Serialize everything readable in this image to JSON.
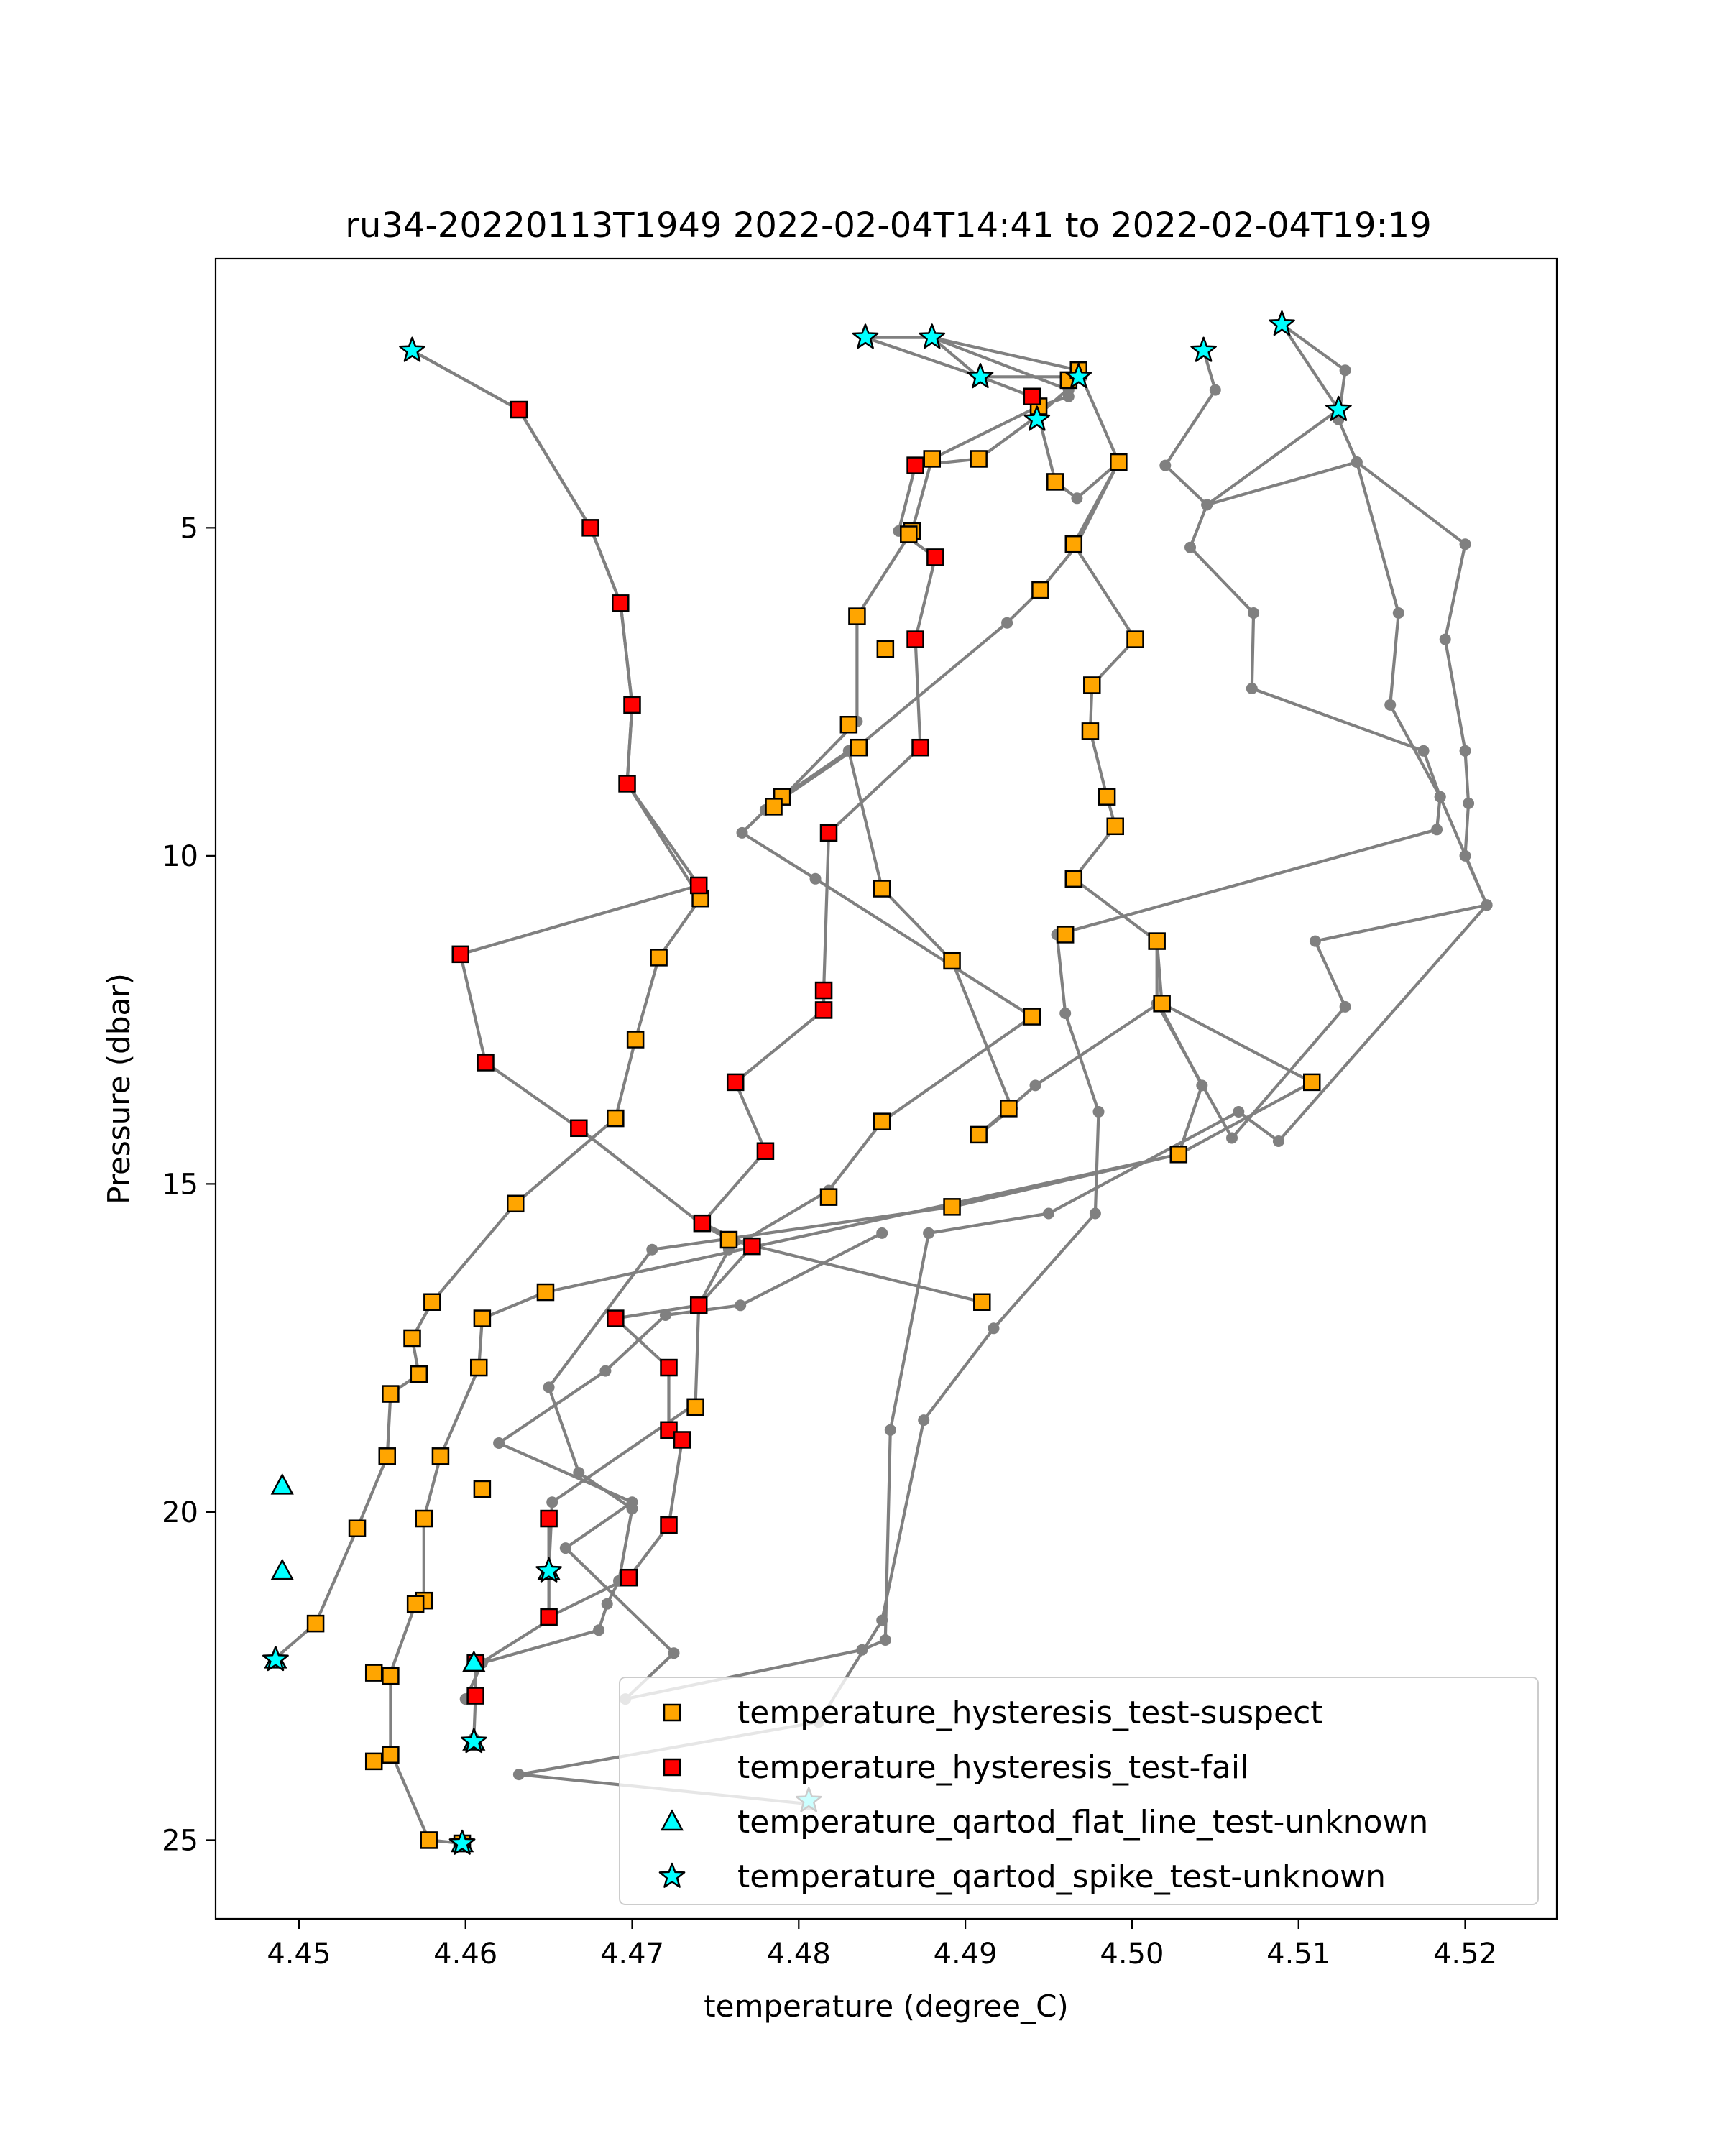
{
  "chart_data": {
    "type": "scatter",
    "title": "ru34-20220113T1949 2022-02-04T14:41 to 2022-02-04T19:19",
    "xlabel": "temperature (degree_C)",
    "ylabel": "Pressure (dbar)",
    "xlim": [
      4.445,
      4.5255
    ],
    "ylim": [
      26.2,
      0.9
    ],
    "y_inverted": true,
    "grid": false,
    "legend_position": "lower right",
    "xticks": [
      "4.45",
      "4.46",
      "4.47",
      "4.48",
      "4.49",
      "4.50",
      "4.51",
      "4.52"
    ],
    "yticks": [
      "5",
      "10",
      "15",
      "20",
      "25"
    ],
    "line_color": "#808080",
    "profiles": [
      [
        [
          4.4568,
          2.3
        ],
        [
          4.4632,
          3.2
        ],
        [
          4.4675,
          5.0
        ],
        [
          4.4693,
          6.15
        ],
        [
          4.47,
          7.7
        ],
        [
          4.4697,
          8.9
        ],
        [
          4.474,
          10.45
        ],
        [
          4.4597,
          11.5
        ],
        [
          4.4612,
          13.15
        ],
        [
          4.4668,
          14.15
        ],
        [
          4.4741,
          15.6
        ],
        [
          4.4758,
          15.85
        ],
        [
          4.491,
          16.8
        ]
      ],
      [
        [
          4.4568,
          2.3
        ],
        [
          4.4632,
          3.2
        ],
        [
          4.4675,
          5.0
        ],
        [
          4.4693,
          6.15
        ],
        [
          4.47,
          7.7
        ],
        [
          4.4697,
          8.9
        ],
        [
          4.4741,
          10.65
        ],
        [
          4.4716,
          11.55
        ],
        [
          4.4702,
          12.8
        ],
        [
          4.469,
          14.0
        ],
        [
          4.463,
          15.3
        ],
        [
          4.458,
          16.8
        ],
        [
          4.4568,
          17.35
        ],
        [
          4.4572,
          17.9
        ],
        [
          4.4555,
          18.2
        ],
        [
          4.4553,
          19.15
        ],
        [
          4.4535,
          20.25
        ],
        [
          4.451,
          21.7
        ],
        [
          4.4485,
          22.25
        ]
      ],
      [
        [
          4.484,
          2.1
        ],
        [
          4.488,
          2.1
        ],
        [
          4.4968,
          2.6
        ],
        [
          4.4992,
          4.0
        ],
        [
          4.4965,
          5.25
        ],
        [
          4.5002,
          6.7
        ],
        [
          4.4976,
          7.4
        ],
        [
          4.4975,
          8.1
        ],
        [
          4.4985,
          9.1
        ],
        [
          4.499,
          9.55
        ],
        [
          4.4965,
          10.35
        ],
        [
          4.5015,
          11.3
        ],
        [
          4.5018,
          12.25
        ],
        [
          4.5108,
          13.45
        ],
        [
          4.5028,
          14.55
        ],
        [
          4.4648,
          16.65
        ],
        [
          4.461,
          17.05
        ],
        [
          4.4608,
          17.8
        ],
        [
          4.4585,
          19.15
        ],
        [
          4.4575,
          20.1
        ],
        [
          4.4575,
          21.35
        ],
        [
          4.457,
          21.4
        ],
        [
          4.4555,
          22.45
        ],
        [
          4.4555,
          23.65
        ],
        [
          4.4578,
          25.0
        ],
        [
          4.4598,
          25.05
        ]
      ],
      [
        [
          4.484,
          2.1
        ],
        [
          4.4909,
          2.7
        ],
        [
          4.494,
          3.0
        ],
        [
          4.4944,
          3.3
        ],
        [
          4.4954,
          4.3
        ],
        [
          4.4967,
          4.55
        ],
        [
          4.4992,
          4.0
        ],
        [
          4.4966,
          5.3
        ],
        [
          4.4945,
          5.95
        ],
        [
          4.4925,
          6.45
        ],
        [
          4.4835,
          8.35
        ],
        [
          4.478,
          9.3
        ],
        [
          4.4766,
          9.65
        ],
        [
          4.481,
          10.35
        ],
        [
          4.494,
          12.45
        ],
        [
          4.485,
          14.05
        ],
        [
          4.4818,
          15.1
        ],
        [
          4.4758,
          16.0
        ],
        [
          4.474,
          16.85
        ],
        [
          4.4738,
          18.35
        ],
        [
          4.4652,
          19.85
        ],
        [
          4.465,
          20.9
        ],
        [
          4.465,
          21.65
        ],
        [
          4.4606,
          22.35
        ],
        [
          4.4606,
          22.8
        ],
        [
          4.4605,
          23.45
        ]
      ],
      [
        [
          4.488,
          2.1
        ],
        [
          4.4962,
          2.9
        ],
        [
          4.4962,
          3.0
        ],
        [
          4.4944,
          3.15
        ],
        [
          4.488,
          3.95
        ],
        [
          4.4868,
          5.05
        ],
        [
          4.4835,
          6.35
        ],
        [
          4.4835,
          7.95
        ],
        [
          4.4785,
          9.25
        ],
        [
          4.479,
          9.1
        ],
        [
          4.483,
          8.4
        ],
        [
          4.485,
          10.5
        ],
        [
          4.4892,
          11.6
        ],
        [
          4.4928,
          13.85
        ],
        [
          4.4908,
          14.25
        ],
        [
          4.4942,
          13.5
        ],
        [
          4.5016,
          12.25
        ],
        [
          4.5042,
          13.5
        ],
        [
          4.5028,
          14.55
        ],
        [
          4.4892,
          15.35
        ],
        [
          4.4712,
          16.0
        ],
        [
          4.465,
          18.1
        ],
        [
          4.4668,
          19.4
        ],
        [
          4.47,
          19.95
        ],
        [
          4.4692,
          21.05
        ],
        [
          4.4685,
          21.4
        ],
        [
          4.468,
          21.8
        ],
        [
          4.461,
          22.3
        ],
        [
          4.46,
          22.85
        ]
      ],
      [
        [
          4.488,
          2.1
        ],
        [
          4.4908,
          2.7
        ],
        [
          4.497,
          2.7
        ],
        [
          4.4943,
          3.3
        ],
        [
          4.4908,
          3.95
        ],
        [
          4.487,
          4.05
        ],
        [
          4.486,
          5.05
        ],
        [
          4.4882,
          5.45
        ],
        [
          4.487,
          6.7
        ],
        [
          4.4873,
          8.35
        ],
        [
          4.4818,
          9.65
        ],
        [
          4.4815,
          12.05
        ],
        [
          4.4815,
          12.35
        ],
        [
          4.4762,
          13.45
        ],
        [
          4.478,
          14.5
        ],
        [
          4.4742,
          15.6
        ],
        [
          4.4772,
          15.95
        ],
        [
          4.474,
          16.85
        ],
        [
          4.469,
          17.05
        ],
        [
          4.4722,
          17.8
        ],
        [
          4.4722,
          18.75
        ],
        [
          4.473,
          18.9
        ],
        [
          4.4722,
          20.2
        ],
        [
          4.4698,
          21.0
        ],
        [
          4.465,
          21.6
        ],
        [
          4.465,
          20.1
        ]
      ],
      [
        [
          4.509,
          1.9
        ],
        [
          4.5128,
          2.6
        ],
        [
          4.5124,
          3.35
        ],
        [
          4.5135,
          4.0
        ],
        [
          4.52,
          5.25
        ],
        [
          4.5188,
          6.7
        ],
        [
          4.52,
          8.4
        ],
        [
          4.5202,
          9.2
        ],
        [
          4.52,
          10.0
        ],
        [
          4.5213,
          10.75
        ],
        [
          4.511,
          11.3
        ],
        [
          4.5128,
          12.3
        ],
        [
          4.506,
          14.3
        ],
        [
          4.5015,
          12.25
        ],
        [
          4.5015,
          11.3
        ]
      ],
      [
        [
          4.5043,
          2.3
        ],
        [
          4.505,
          2.9
        ],
        [
          4.502,
          4.05
        ],
        [
          4.5045,
          4.65
        ],
        [
          4.5035,
          5.3
        ],
        [
          4.5073,
          6.3
        ],
        [
          4.5072,
          7.45
        ],
        [
          4.5175,
          8.4
        ],
        [
          4.5185,
          9.1
        ],
        [
          4.5183,
          9.6
        ],
        [
          4.4955,
          11.2
        ],
        [
          4.496,
          12.4
        ],
        [
          4.498,
          13.9
        ],
        [
          4.4978,
          15.45
        ],
        [
          4.4917,
          17.2
        ],
        [
          4.4875,
          18.6
        ],
        [
          4.485,
          21.65
        ],
        [
          4.4812,
          23.2
        ],
        [
          4.4632,
          24.0
        ],
        [
          4.4806,
          24.45
        ]
      ],
      [
        [
          4.509,
          1.9
        ],
        [
          4.5124,
          3.2
        ],
        [
          4.5045,
          4.65
        ],
        [
          4.5135,
          4.0
        ],
        [
          4.516,
          6.3
        ],
        [
          4.5155,
          7.7
        ],
        [
          4.5185,
          9.1
        ],
        [
          4.5213,
          10.75
        ],
        [
          4.5088,
          14.35
        ],
        [
          4.5064,
          13.9
        ],
        [
          4.495,
          15.45
        ],
        [
          4.4878,
          15.75
        ],
        [
          4.4855,
          18.75
        ],
        [
          4.4852,
          21.95
        ],
        [
          4.4838,
          22.1
        ],
        [
          4.4696,
          22.85
        ],
        [
          4.4725,
          22.15
        ],
        [
          4.466,
          20.55
        ],
        [
          4.47,
          19.85
        ],
        [
          4.462,
          18.95
        ],
        [
          4.4684,
          17.85
        ],
        [
          4.472,
          17.0
        ],
        [
          4.4765,
          16.85
        ],
        [
          4.485,
          15.75
        ]
      ]
    ],
    "series": [
      {
        "name": "temperature_hysteresis_test-suspect",
        "color": "#ffa500",
        "marker": "square",
        "points": [
          [
            4.4962,
            2.75
          ],
          [
            4.4968,
            2.6
          ],
          [
            4.4944,
            3.15
          ],
          [
            4.488,
            3.95
          ],
          [
            4.4908,
            3.95
          ],
          [
            4.4954,
            4.3
          ],
          [
            4.4992,
            4.0
          ],
          [
            4.4868,
            5.05
          ],
          [
            4.4866,
            5.1
          ],
          [
            4.4965,
            5.25
          ],
          [
            4.4945,
            5.95
          ],
          [
            4.5002,
            6.7
          ],
          [
            4.4835,
            6.35
          ],
          [
            4.4852,
            6.85
          ],
          [
            4.4976,
            7.4
          ],
          [
            4.483,
            8.0
          ],
          [
            4.4836,
            8.35
          ],
          [
            4.4975,
            8.1
          ],
          [
            4.4985,
            9.1
          ],
          [
            4.479,
            9.1
          ],
          [
            4.4785,
            9.25
          ],
          [
            4.499,
            9.55
          ],
          [
            4.4965,
            10.35
          ],
          [
            4.485,
            10.5
          ],
          [
            4.4741,
            10.65
          ],
          [
            4.5015,
            11.3
          ],
          [
            4.496,
            11.2
          ],
          [
            4.4892,
            11.6
          ],
          [
            4.4716,
            11.55
          ],
          [
            4.5018,
            12.25
          ],
          [
            4.494,
            12.45
          ],
          [
            4.4702,
            12.8
          ],
          [
            4.5108,
            13.45
          ],
          [
            4.4926,
            13.85
          ],
          [
            4.485,
            14.05
          ],
          [
            4.4908,
            14.25
          ],
          [
            4.469,
            14.0
          ],
          [
            4.5028,
            14.55
          ],
          [
            4.463,
            15.3
          ],
          [
            4.4818,
            15.2
          ],
          [
            4.4892,
            15.35
          ],
          [
            4.4758,
            15.85
          ],
          [
            4.491,
            16.8
          ],
          [
            4.4648,
            16.65
          ],
          [
            4.458,
            16.8
          ],
          [
            4.461,
            17.05
          ],
          [
            4.4568,
            17.35
          ],
          [
            4.4608,
            17.8
          ],
          [
            4.4572,
            17.9
          ],
          [
            4.4555,
            18.2
          ],
          [
            4.4738,
            18.4
          ],
          [
            4.4585,
            19.15
          ],
          [
            4.4553,
            19.15
          ],
          [
            4.461,
            19.65
          ],
          [
            4.4575,
            20.1
          ],
          [
            4.4535,
            20.25
          ],
          [
            4.4575,
            21.35
          ],
          [
            4.457,
            21.4
          ],
          [
            4.451,
            21.7
          ],
          [
            4.4545,
            22.45
          ],
          [
            4.4555,
            22.5
          ],
          [
            4.4545,
            23.8
          ],
          [
            4.4555,
            23.7
          ],
          [
            4.4578,
            25.0
          ],
          [
            4.4598,
            25.05
          ]
        ]
      },
      {
        "name": "temperature_hysteresis_test-fail",
        "color": "#ff0000",
        "marker": "square",
        "points": [
          [
            4.4632,
            3.2
          ],
          [
            4.494,
            3.0
          ],
          [
            4.487,
            4.05
          ],
          [
            4.4675,
            5.0
          ],
          [
            4.4882,
            5.45
          ],
          [
            4.4693,
            6.15
          ],
          [
            4.487,
            6.7
          ],
          [
            4.47,
            7.7
          ],
          [
            4.4873,
            8.35
          ],
          [
            4.4697,
            8.9
          ],
          [
            4.4818,
            9.65
          ],
          [
            4.474,
            10.45
          ],
          [
            4.4597,
            11.5
          ],
          [
            4.4815,
            12.05
          ],
          [
            4.4815,
            12.35
          ],
          [
            4.4612,
            13.15
          ],
          [
            4.4762,
            13.45
          ],
          [
            4.4668,
            14.15
          ],
          [
            4.478,
            14.5
          ],
          [
            4.4742,
            15.6
          ],
          [
            4.4772,
            15.95
          ],
          [
            4.474,
            16.85
          ],
          [
            4.469,
            17.05
          ],
          [
            4.4722,
            17.8
          ],
          [
            4.4722,
            18.75
          ],
          [
            4.473,
            18.9
          ],
          [
            4.465,
            20.1
          ],
          [
            4.4722,
            20.2
          ],
          [
            4.4698,
            21.0
          ],
          [
            4.465,
            21.6
          ],
          [
            4.4606,
            22.3
          ],
          [
            4.4606,
            22.8
          ]
        ]
      },
      {
        "name": "temperature_qartod_flat_line_test-unknown",
        "color": "#00ffff",
        "marker": "triangle",
        "points": [
          [
            4.449,
            19.6
          ],
          [
            4.449,
            20.9
          ],
          [
            4.4486,
            22.25
          ],
          [
            4.4605,
            22.3
          ],
          [
            4.465,
            20.9
          ],
          [
            4.4605,
            23.5
          ],
          [
            4.4598,
            25.05
          ]
        ]
      },
      {
        "name": "temperature_qartod_spike_test-unknown",
        "color": "#00ffff",
        "marker": "star",
        "points": [
          [
            4.4568,
            2.3
          ],
          [
            4.484,
            2.1
          ],
          [
            4.488,
            2.1
          ],
          [
            4.509,
            1.9
          ],
          [
            4.5043,
            2.3
          ],
          [
            4.4909,
            2.7
          ],
          [
            4.4968,
            2.7
          ],
          [
            4.5124,
            3.2
          ],
          [
            4.4943,
            3.35
          ],
          [
            4.4486,
            22.25
          ],
          [
            4.465,
            20.9
          ],
          [
            4.4605,
            23.5
          ],
          [
            4.4598,
            25.05
          ],
          [
            4.4806,
            24.4
          ]
        ]
      }
    ]
  }
}
